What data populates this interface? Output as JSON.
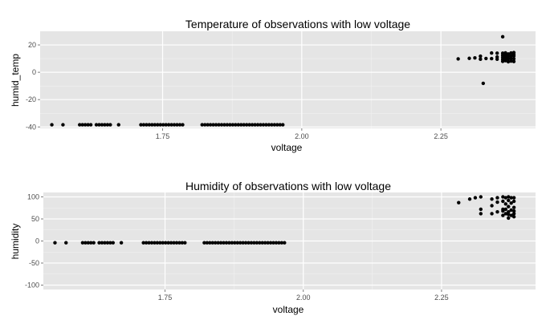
{
  "chart_data": [
    {
      "type": "scatter",
      "title": "Temperature of observations with low voltage",
      "xlabel": "voltage",
      "ylabel": "humid_temp",
      "xlim": [
        1.53,
        2.42
      ],
      "ylim": [
        -41,
        30
      ],
      "x_ticks": [
        1.75,
        2.0,
        2.25
      ],
      "x_tick_labels": [
        "1.75",
        "2.00",
        "2.25"
      ],
      "y_ticks": [
        -40,
        -20,
        0,
        20
      ],
      "y_tick_labels": [
        "-40",
        "-20",
        "0",
        "20"
      ],
      "grid": true,
      "background": "#e5e5e5",
      "point_color": "#000000",
      "points": [
        [
          1.551,
          -38.4
        ],
        [
          1.571,
          -38.4
        ],
        [
          1.601,
          -38.4
        ],
        [
          1.606,
          -38.4
        ],
        [
          1.611,
          -38.4
        ],
        [
          1.616,
          -38.4
        ],
        [
          1.621,
          -38.4
        ],
        [
          1.631,
          -38.4
        ],
        [
          1.636,
          -38.4
        ],
        [
          1.641,
          -38.4
        ],
        [
          1.646,
          -38.4
        ],
        [
          1.651,
          -38.4
        ],
        [
          1.656,
          -38.4
        ],
        [
          1.671,
          -38.4
        ],
        [
          1.711,
          -38.4
        ],
        [
          1.716,
          -38.4
        ],
        [
          1.721,
          -38.4
        ],
        [
          1.726,
          -38.4
        ],
        [
          1.731,
          -38.4
        ],
        [
          1.736,
          -38.4
        ],
        [
          1.741,
          -38.4
        ],
        [
          1.746,
          -38.4
        ],
        [
          1.751,
          -38.4
        ],
        [
          1.756,
          -38.4
        ],
        [
          1.761,
          -38.4
        ],
        [
          1.766,
          -38.4
        ],
        [
          1.771,
          -38.4
        ],
        [
          1.776,
          -38.4
        ],
        [
          1.781,
          -38.4
        ],
        [
          1.786,
          -38.4
        ],
        [
          1.821,
          -38.4
        ],
        [
          1.826,
          -38.4
        ],
        [
          1.831,
          -38.4
        ],
        [
          1.836,
          -38.4
        ],
        [
          1.841,
          -38.4
        ],
        [
          1.846,
          -38.4
        ],
        [
          1.851,
          -38.4
        ],
        [
          1.856,
          -38.4
        ],
        [
          1.861,
          -38.4
        ],
        [
          1.866,
          -38.4
        ],
        [
          1.871,
          -38.4
        ],
        [
          1.876,
          -38.4
        ],
        [
          1.881,
          -38.4
        ],
        [
          1.886,
          -38.4
        ],
        [
          1.891,
          -38.4
        ],
        [
          1.896,
          -38.4
        ],
        [
          1.901,
          -38.4
        ],
        [
          1.906,
          -38.4
        ],
        [
          1.911,
          -38.4
        ],
        [
          1.916,
          -38.4
        ],
        [
          1.921,
          -38.4
        ],
        [
          1.926,
          -38.4
        ],
        [
          1.931,
          -38.4
        ],
        [
          1.936,
          -38.4
        ],
        [
          1.941,
          -38.4
        ],
        [
          1.946,
          -38.4
        ],
        [
          1.951,
          -38.4
        ],
        [
          1.956,
          -38.4
        ],
        [
          1.961,
          -38.4
        ],
        [
          1.966,
          -38.4
        ],
        [
          2.281,
          9.8
        ],
        [
          2.301,
          10.2
        ],
        [
          2.311,
          10.5
        ],
        [
          2.321,
          9.6
        ],
        [
          2.321,
          11.8
        ],
        [
          2.331,
          10.1
        ],
        [
          2.326,
          -8.1
        ],
        [
          2.341,
          10.0
        ],
        [
          2.341,
          14.1
        ],
        [
          2.351,
          9.6
        ],
        [
          2.351,
          11.2
        ],
        [
          2.351,
          14.0
        ],
        [
          2.361,
          8.0
        ],
        [
          2.361,
          9.5
        ],
        [
          2.361,
          11.0
        ],
        [
          2.361,
          12.5
        ],
        [
          2.361,
          14.0
        ],
        [
          2.361,
          26.0
        ],
        [
          2.366,
          8.5
        ],
        [
          2.366,
          10.5
        ],
        [
          2.366,
          12.3
        ],
        [
          2.366,
          14.2
        ],
        [
          2.371,
          7.7
        ],
        [
          2.371,
          9.8
        ],
        [
          2.371,
          11.6
        ],
        [
          2.371,
          13.4
        ],
        [
          2.376,
          8.2
        ],
        [
          2.376,
          10.2
        ],
        [
          2.376,
          12.0
        ],
        [
          2.376,
          14.1
        ],
        [
          2.381,
          7.9
        ],
        [
          2.381,
          9.9
        ],
        [
          2.381,
          11.9
        ],
        [
          2.381,
          13.0
        ],
        [
          2.381,
          14.4
        ]
      ]
    },
    {
      "type": "scatter",
      "title": "Humidity of observations with low voltage",
      "xlabel": "voltage",
      "ylabel": "humidity",
      "xlim": [
        1.53,
        2.42
      ],
      "ylim": [
        -110,
        110
      ],
      "x_ticks": [
        1.75,
        2.0,
        2.25
      ],
      "x_tick_labels": [
        "1.75",
        "2.00",
        "2.25"
      ],
      "y_ticks": [
        -100,
        -50,
        0,
        50,
        100
      ],
      "y_tick_labels": [
        "-100",
        "-50",
        "0",
        "50",
        "100"
      ],
      "grid": true,
      "background": "#e5e5e5",
      "point_color": "#000000",
      "points": [
        [
          1.551,
          -4
        ],
        [
          1.571,
          -4
        ],
        [
          1.601,
          -4
        ],
        [
          1.606,
          -4
        ],
        [
          1.611,
          -4
        ],
        [
          1.616,
          -4
        ],
        [
          1.621,
          -4
        ],
        [
          1.631,
          -4
        ],
        [
          1.636,
          -4
        ],
        [
          1.641,
          -4
        ],
        [
          1.646,
          -4
        ],
        [
          1.651,
          -4
        ],
        [
          1.656,
          -4
        ],
        [
          1.671,
          -4
        ],
        [
          1.711,
          -4
        ],
        [
          1.716,
          -4
        ],
        [
          1.721,
          -4
        ],
        [
          1.726,
          -4
        ],
        [
          1.731,
          -4
        ],
        [
          1.736,
          -4
        ],
        [
          1.741,
          -4
        ],
        [
          1.746,
          -4
        ],
        [
          1.751,
          -4
        ],
        [
          1.756,
          -4
        ],
        [
          1.761,
          -4
        ],
        [
          1.766,
          -4
        ],
        [
          1.771,
          -4
        ],
        [
          1.776,
          -4
        ],
        [
          1.781,
          -4
        ],
        [
          1.786,
          -4
        ],
        [
          1.821,
          -4
        ],
        [
          1.826,
          -4
        ],
        [
          1.831,
          -4
        ],
        [
          1.836,
          -4
        ],
        [
          1.841,
          -4
        ],
        [
          1.846,
          -4
        ],
        [
          1.851,
          -4
        ],
        [
          1.856,
          -4
        ],
        [
          1.861,
          -4
        ],
        [
          1.866,
          -4
        ],
        [
          1.871,
          -4
        ],
        [
          1.876,
          -4
        ],
        [
          1.881,
          -4
        ],
        [
          1.886,
          -4
        ],
        [
          1.891,
          -4
        ],
        [
          1.896,
          -4
        ],
        [
          1.901,
          -4
        ],
        [
          1.906,
          -4
        ],
        [
          1.911,
          -4
        ],
        [
          1.916,
          -4
        ],
        [
          1.921,
          -4
        ],
        [
          1.926,
          -4
        ],
        [
          1.931,
          -4
        ],
        [
          1.936,
          -4
        ],
        [
          1.941,
          -4
        ],
        [
          1.946,
          -4
        ],
        [
          1.951,
          -4
        ],
        [
          1.956,
          -4
        ],
        [
          1.961,
          -4
        ],
        [
          1.966,
          -4
        ],
        [
          2.281,
          87
        ],
        [
          2.301,
          95
        ],
        [
          2.311,
          98
        ],
        [
          2.321,
          100
        ],
        [
          2.321,
          72
        ],
        [
          2.321,
          62
        ],
        [
          2.341,
          62
        ],
        [
          2.341,
          80
        ],
        [
          2.341,
          95
        ],
        [
          2.351,
          66
        ],
        [
          2.351,
          88
        ],
        [
          2.351,
          98
        ],
        [
          2.361,
          58
        ],
        [
          2.361,
          68
        ],
        [
          2.361,
          72
        ],
        [
          2.361,
          90
        ],
        [
          2.361,
          100
        ],
        [
          2.366,
          62
        ],
        [
          2.366,
          72
        ],
        [
          2.366,
          84
        ],
        [
          2.366,
          98
        ],
        [
          2.371,
          52
        ],
        [
          2.371,
          60
        ],
        [
          2.371,
          66
        ],
        [
          2.371,
          78
        ],
        [
          2.371,
          92
        ],
        [
          2.371,
          100
        ],
        [
          2.376,
          58
        ],
        [
          2.376,
          70
        ],
        [
          2.376,
          86
        ],
        [
          2.376,
          98
        ],
        [
          2.381,
          55
        ],
        [
          2.381,
          62
        ],
        [
          2.381,
          68
        ],
        [
          2.381,
          76
        ],
        [
          2.381,
          90
        ],
        [
          2.381,
          98
        ]
      ]
    }
  ]
}
